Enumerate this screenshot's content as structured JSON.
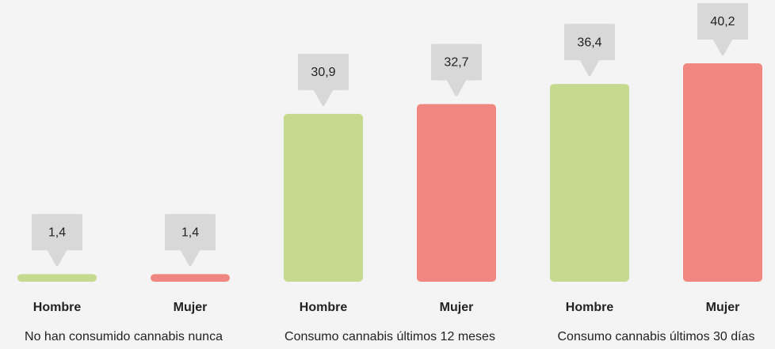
{
  "chart_data": {
    "type": "bar",
    "categories": [
      "No han consumido cannabis nunca",
      "Consumo cannabis últimos 12 meses",
      "Consumo cannabis últimos 30 días"
    ],
    "series": [
      {
        "name": "Hombre",
        "color": "#c5da8f",
        "values": [
          1.4,
          30.9,
          36.4
        ],
        "value_labels": [
          "1,4",
          "30,9",
          "36,4"
        ]
      },
      {
        "name": "Mujer",
        "color": "#f08680",
        "values": [
          1.4,
          32.7,
          40.2
        ],
        "value_labels": [
          "1,4",
          "32,7",
          "40,2"
        ]
      }
    ]
  }
}
